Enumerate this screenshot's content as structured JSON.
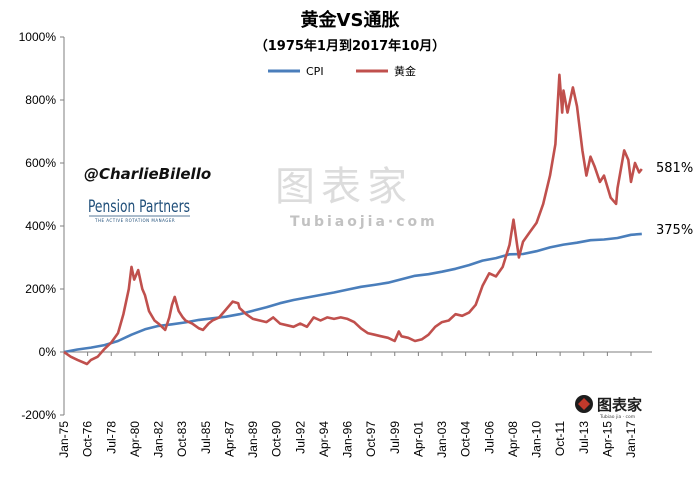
{
  "chart_data": {
    "type": "line",
    "title": "黄金VS通胀",
    "subtitle": "（1975年1月到2017年10月）",
    "xlabel": "",
    "ylabel": "",
    "x_range": [
      "Jan-75",
      "Oct-17"
    ],
    "ylim": [
      -200,
      1000
    ],
    "y_ticks": [
      -200,
      0,
      200,
      400,
      600,
      800,
      1000
    ],
    "y_tick_labels": [
      "-200%",
      "0%",
      "200%",
      "400%",
      "600%",
      "800%",
      "1000%"
    ],
    "x_tick_labels": [
      "Jan-75",
      "Oct-76",
      "Jul-78",
      "Apr-80",
      "Jan-82",
      "Oct-83",
      "Jul-85",
      "Apr-87",
      "Jan-89",
      "Oct-90",
      "Jul-92",
      "Apr-94",
      "Jan-96",
      "Oct-97",
      "Jul-99",
      "Apr-01",
      "Jan-03",
      "Oct-04",
      "Jul-06",
      "Apr-08",
      "Jan-10",
      "Oct-11",
      "Jul-13",
      "Apr-15",
      "Jan-17"
    ],
    "grid": false,
    "legend_position": "top",
    "series": [
      {
        "name": "CPI",
        "color": "#4a7ebb",
        "points": [
          [
            1975,
            0
          ],
          [
            1976,
            8
          ],
          [
            1977,
            14
          ],
          [
            1978,
            22
          ],
          [
            1979,
            35
          ],
          [
            1980,
            55
          ],
          [
            1981,
            72
          ],
          [
            1982,
            83
          ],
          [
            1983,
            88
          ],
          [
            1984,
            94
          ],
          [
            1985,
            102
          ],
          [
            1986,
            107
          ],
          [
            1987,
            112
          ],
          [
            1988,
            120
          ],
          [
            1989,
            131
          ],
          [
            1990,
            142
          ],
          [
            1991,
            155
          ],
          [
            1992,
            165
          ],
          [
            1993,
            173
          ],
          [
            1994,
            181
          ],
          [
            1995,
            189
          ],
          [
            1996,
            198
          ],
          [
            1997,
            207
          ],
          [
            1998,
            213
          ],
          [
            1999,
            220
          ],
          [
            2000,
            231
          ],
          [
            2001,
            242
          ],
          [
            2002,
            247
          ],
          [
            2003,
            255
          ],
          [
            2004,
            264
          ],
          [
            2005,
            276
          ],
          [
            2006,
            290
          ],
          [
            2007,
            298
          ],
          [
            2008,
            310
          ],
          [
            2009,
            311
          ],
          [
            2010,
            320
          ],
          [
            2011,
            332
          ],
          [
            2012,
            341
          ],
          [
            2013,
            347
          ],
          [
            2014,
            355
          ],
          [
            2015,
            357
          ],
          [
            2016,
            362
          ],
          [
            2017,
            372
          ],
          [
            2017.8,
            375
          ]
        ]
      },
      {
        "name": "黄金",
        "color": "#c0504d",
        "points": [
          [
            1975,
            0
          ],
          [
            1975.5,
            -15
          ],
          [
            1976,
            -25
          ],
          [
            1976.7,
            -38
          ],
          [
            1977,
            -25
          ],
          [
            1977.5,
            -15
          ],
          [
            1978,
            10
          ],
          [
            1978.5,
            30
          ],
          [
            1979,
            60
          ],
          [
            1979.4,
            120
          ],
          [
            1979.8,
            200
          ],
          [
            1980.0,
            270
          ],
          [
            1980.2,
            230
          ],
          [
            1980.5,
            260
          ],
          [
            1980.8,
            200
          ],
          [
            1981,
            180
          ],
          [
            1981.3,
            130
          ],
          [
            1981.7,
            100
          ],
          [
            1982,
            90
          ],
          [
            1982.5,
            70
          ],
          [
            1982.8,
            110
          ],
          [
            1983,
            150
          ],
          [
            1983.2,
            175
          ],
          [
            1983.5,
            130
          ],
          [
            1983.8,
            110
          ],
          [
            1984,
            100
          ],
          [
            1984.5,
            90
          ],
          [
            1985,
            75
          ],
          [
            1985.3,
            70
          ],
          [
            1985.7,
            90
          ],
          [
            1986,
            100
          ],
          [
            1986.5,
            110
          ],
          [
            1987,
            135
          ],
          [
            1987.5,
            160
          ],
          [
            1987.9,
            155
          ],
          [
            1988,
            140
          ],
          [
            1988.5,
            120
          ],
          [
            1989,
            105
          ],
          [
            1989.5,
            100
          ],
          [
            1990,
            95
          ],
          [
            1990.5,
            110
          ],
          [
            1991,
            90
          ],
          [
            1991.5,
            85
          ],
          [
            1992,
            80
          ],
          [
            1992.5,
            90
          ],
          [
            1993,
            80
          ],
          [
            1993.5,
            110
          ],
          [
            1994,
            100
          ],
          [
            1994.5,
            110
          ],
          [
            1995,
            105
          ],
          [
            1995.5,
            110
          ],
          [
            1996,
            105
          ],
          [
            1996.5,
            95
          ],
          [
            1997,
            75
          ],
          [
            1997.5,
            60
          ],
          [
            1998,
            55
          ],
          [
            1998.5,
            50
          ],
          [
            1999,
            45
          ],
          [
            1999.5,
            35
          ],
          [
            1999.8,
            65
          ],
          [
            2000,
            50
          ],
          [
            2000.5,
            45
          ],
          [
            2001,
            35
          ],
          [
            2001.5,
            40
          ],
          [
            2002,
            55
          ],
          [
            2002.5,
            80
          ],
          [
            2003,
            95
          ],
          [
            2003.5,
            100
          ],
          [
            2004,
            120
          ],
          [
            2004.5,
            115
          ],
          [
            2005,
            125
          ],
          [
            2005.5,
            150
          ],
          [
            2006,
            210
          ],
          [
            2006.5,
            250
          ],
          [
            2007,
            240
          ],
          [
            2007.5,
            270
          ],
          [
            2008,
            340
          ],
          [
            2008.3,
            420
          ],
          [
            2008.7,
            300
          ],
          [
            2009,
            350
          ],
          [
            2009.5,
            380
          ],
          [
            2010,
            410
          ],
          [
            2010.5,
            470
          ],
          [
            2011,
            560
          ],
          [
            2011.4,
            660
          ],
          [
            2011.7,
            880
          ],
          [
            2011.9,
            760
          ],
          [
            2012,
            830
          ],
          [
            2012.3,
            760
          ],
          [
            2012.7,
            840
          ],
          [
            2013,
            780
          ],
          [
            2013.4,
            640
          ],
          [
            2013.7,
            560
          ],
          [
            2014,
            620
          ],
          [
            2014.3,
            590
          ],
          [
            2014.7,
            540
          ],
          [
            2015,
            560
          ],
          [
            2015.5,
            490
          ],
          [
            2015.9,
            470
          ],
          [
            2016,
            520
          ],
          [
            2016.5,
            640
          ],
          [
            2016.8,
            610
          ],
          [
            2017,
            540
          ],
          [
            2017.3,
            600
          ],
          [
            2017.6,
            570
          ],
          [
            2017.8,
            581
          ]
        ]
      }
    ],
    "annotations": [
      {
        "series": "黄金",
        "text": "581%"
      },
      {
        "series": "CPI",
        "text": "375%"
      }
    ]
  },
  "overlay": {
    "handle": "@CharlieBilello",
    "brand": "Pension Partners",
    "brand_sub": "THE ACTIVE ROTATION MANAGER",
    "watermark": "图表家",
    "watermark_sub": "Tubiaojia·com",
    "corner_logo": "图表家",
    "corner_logo_sub": "Tubiao jia · com"
  }
}
